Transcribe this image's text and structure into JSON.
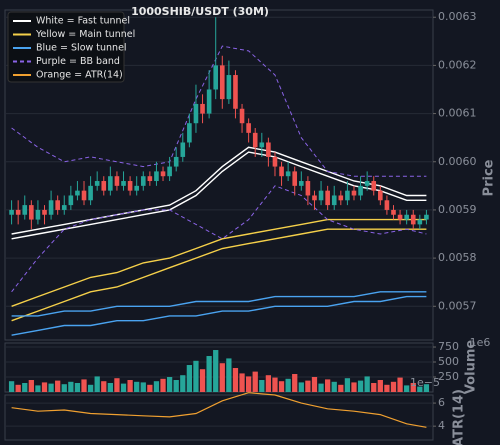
{
  "chart_data": [
    {
      "type": "candlestick",
      "title": "1000SHIB/USDT (30M)",
      "ylabel": "Price",
      "legend": "upper left",
      "grid": true,
      "up_color": "#26a69a",
      "down_color": "#ef5350",
      "ylim": [
        0.00563,
        0.006315
      ],
      "yticks": [
        0.0057,
        0.0058,
        0.0059,
        {
          "value": 0.006,
          "label": "0.0060"
        },
        0.0061,
        0.0062,
        0.0063
      ],
      "candles": [
        [
          0.00589,
          0.00592,
          0.00587,
          0.0059
        ],
        [
          0.0059,
          0.00592,
          0.00587,
          0.00589
        ],
        [
          0.00589,
          0.00593,
          0.00588,
          0.00591
        ],
        [
          0.00591,
          0.00592,
          0.00586,
          0.00588
        ],
        [
          0.00588,
          0.00592,
          0.00587,
          0.0059
        ],
        [
          0.0059,
          0.00591,
          0.00587,
          0.00589
        ],
        [
          0.00589,
          0.00594,
          0.00588,
          0.00592
        ],
        [
          0.00592,
          0.00593,
          0.00589,
          0.0059
        ],
        [
          0.0059,
          0.00593,
          0.00589,
          0.00591
        ],
        [
          0.00591,
          0.00595,
          0.0059,
          0.00593
        ],
        [
          0.00593,
          0.00596,
          0.00592,
          0.00594
        ],
        [
          0.00594,
          0.00596,
          0.00591,
          0.00592
        ],
        [
          0.00592,
          0.00597,
          0.00591,
          0.00595
        ],
        [
          0.00595,
          0.00598,
          0.00594,
          0.00596
        ],
        [
          0.00596,
          0.00597,
          0.00593,
          0.00594
        ],
        [
          0.00594,
          0.00599,
          0.00593,
          0.00597
        ],
        [
          0.00597,
          0.00598,
          0.00594,
          0.00595
        ],
        [
          0.00595,
          0.00598,
          0.00594,
          0.00596
        ],
        [
          0.00596,
          0.00597,
          0.00593,
          0.00594
        ],
        [
          0.00594,
          0.00597,
          0.00593,
          0.00595
        ],
        [
          0.00595,
          0.00598,
          0.00594,
          0.00597
        ],
        [
          0.00597,
          0.00598,
          0.00595,
          0.00596
        ],
        [
          0.00596,
          0.006,
          0.00595,
          0.00598
        ],
        [
          0.00598,
          0.00599,
          0.00596,
          0.00597
        ],
        [
          0.00597,
          0.00601,
          0.00596,
          0.00599
        ],
        [
          0.00599,
          0.00603,
          0.00598,
          0.00601
        ],
        [
          0.00601,
          0.00606,
          0.006,
          0.00604
        ],
        [
          0.00604,
          0.0061,
          0.00603,
          0.00608
        ],
        [
          0.00608,
          0.00616,
          0.00606,
          0.00612
        ],
        [
          0.00612,
          0.00614,
          0.00608,
          0.0061
        ],
        [
          0.0061,
          0.00619,
          0.00609,
          0.00615
        ],
        [
          0.00615,
          0.0063,
          0.00613,
          0.0062
        ],
        [
          0.0062,
          0.00622,
          0.00611,
          0.00613
        ],
        [
          0.00613,
          0.00621,
          0.00612,
          0.00618
        ],
        [
          0.00618,
          0.00619,
          0.00609,
          0.00611
        ],
        [
          0.00611,
          0.00612,
          0.00606,
          0.00608
        ],
        [
          0.00608,
          0.00609,
          0.00604,
          0.00606
        ],
        [
          0.00606,
          0.00607,
          0.00601,
          0.00603
        ],
        [
          0.00603,
          0.00606,
          0.00601,
          0.00604
        ],
        [
          0.00604,
          0.00605,
          0.00599,
          0.00601
        ],
        [
          0.00601,
          0.00602,
          0.00597,
          0.00599
        ],
        [
          0.00599,
          0.006,
          0.00595,
          0.00597
        ],
        [
          0.00597,
          0.006,
          0.00596,
          0.00598
        ],
        [
          0.00598,
          0.00599,
          0.00593,
          0.00595
        ],
        [
          0.00595,
          0.00598,
          0.00594,
          0.00596
        ],
        [
          0.00596,
          0.00597,
          0.00591,
          0.00593
        ],
        [
          0.00593,
          0.00594,
          0.0059,
          0.00592
        ],
        [
          0.00592,
          0.00596,
          0.00591,
          0.00594
        ],
        [
          0.00594,
          0.00595,
          0.0059,
          0.00591
        ],
        [
          0.00591,
          0.00595,
          0.0059,
          0.00593
        ],
        [
          0.00593,
          0.00594,
          0.00591,
          0.00592
        ],
        [
          0.00592,
          0.00596,
          0.00591,
          0.00594
        ],
        [
          0.00594,
          0.00595,
          0.00592,
          0.00593
        ],
        [
          0.00593,
          0.00597,
          0.00592,
          0.00595
        ],
        [
          0.00595,
          0.00598,
          0.00594,
          0.00596
        ],
        [
          0.00596,
          0.00597,
          0.00593,
          0.00594
        ],
        [
          0.00594,
          0.00595,
          0.00591,
          0.00592
        ],
        [
          0.00592,
          0.00593,
          0.00589,
          0.0059
        ],
        [
          0.0059,
          0.00591,
          0.00588,
          0.00589
        ],
        [
          0.00589,
          0.0059,
          0.00587,
          0.00588
        ],
        [
          0.00588,
          0.0059,
          0.00587,
          0.00589
        ],
        [
          0.00589,
          0.0059,
          0.00586,
          0.00587
        ],
        [
          0.00587,
          0.00589,
          0.00586,
          0.00588
        ],
        [
          0.00588,
          0.0059,
          0.00587,
          0.00589
        ]
      ],
      "series": [
        {
          "name": "White = Fast tunnel",
          "color": "#ffffff",
          "dash": false,
          "x": [
            0,
            4,
            8,
            12,
            16,
            20,
            24,
            28,
            32,
            36,
            40,
            44,
            48,
            52,
            56,
            60,
            63
          ],
          "upper": [
            0.00585,
            0.00586,
            0.00587,
            0.00588,
            0.00589,
            0.0059,
            0.00591,
            0.00594,
            0.00599,
            0.00603,
            0.00602,
            0.006,
            0.00598,
            0.00596,
            0.00595,
            0.00593,
            0.00593
          ],
          "lower": [
            0.00584,
            0.00585,
            0.00586,
            0.00587,
            0.00588,
            0.00589,
            0.0059,
            0.00593,
            0.00598,
            0.00602,
            0.00601,
            0.00599,
            0.00597,
            0.00595,
            0.00594,
            0.00592,
            0.00592
          ]
        },
        {
          "name": "Yellow = Main tunnel",
          "color": "#f5d04a",
          "dash": false,
          "x": [
            0,
            4,
            8,
            12,
            16,
            20,
            24,
            28,
            32,
            36,
            40,
            44,
            48,
            52,
            56,
            60,
            63
          ],
          "upper": [
            0.0057,
            0.00572,
            0.00574,
            0.00576,
            0.00577,
            0.00579,
            0.0058,
            0.00582,
            0.00584,
            0.00585,
            0.00586,
            0.00587,
            0.00588,
            0.00588,
            0.00588,
            0.00588,
            0.00588
          ],
          "lower": [
            0.00567,
            0.00569,
            0.00571,
            0.00573,
            0.00574,
            0.00576,
            0.00578,
            0.0058,
            0.00582,
            0.00583,
            0.00584,
            0.00585,
            0.00586,
            0.00586,
            0.00586,
            0.00586,
            0.00586
          ]
        },
        {
          "name": "Blue = Slow tunnel",
          "color": "#4aa3f0",
          "dash": false,
          "x": [
            0,
            4,
            8,
            12,
            16,
            20,
            24,
            28,
            32,
            36,
            40,
            44,
            48,
            52,
            56,
            60,
            63
          ],
          "upper": [
            0.00568,
            0.00568,
            0.00569,
            0.00569,
            0.0057,
            0.0057,
            0.0057,
            0.00571,
            0.00571,
            0.00571,
            0.00572,
            0.00572,
            0.00572,
            0.00572,
            0.00573,
            0.00573,
            0.00573
          ],
          "lower": [
            0.00564,
            0.00565,
            0.00566,
            0.00566,
            0.00567,
            0.00567,
            0.00568,
            0.00568,
            0.00569,
            0.00569,
            0.0057,
            0.0057,
            0.0057,
            0.00571,
            0.00571,
            0.00572,
            0.00572
          ]
        },
        {
          "name": "Purple = BB band",
          "color": "#8a63e6",
          "dash": true,
          "x": [
            0,
            4,
            8,
            12,
            16,
            20,
            24,
            28,
            32,
            36,
            40,
            44,
            48,
            52,
            56,
            60,
            63
          ],
          "upper": [
            0.00607,
            0.00603,
            0.006,
            0.00601,
            0.006,
            0.00599,
            0.006,
            0.00613,
            0.00624,
            0.00623,
            0.00618,
            0.00605,
            0.00598,
            0.00597,
            0.00597,
            0.00597,
            0.00597
          ],
          "lower": [
            0.00573,
            0.0058,
            0.00586,
            0.00588,
            0.00589,
            0.0059,
            0.0059,
            0.00587,
            0.00584,
            0.00588,
            0.00595,
            0.00593,
            0.00588,
            0.00586,
            0.00585,
            0.00586,
            0.00585
          ]
        }
      ]
    },
    {
      "type": "bar",
      "ylabel": "Volume",
      "offset_label": "1e6",
      "ylim": [
        0,
        817
      ],
      "yticks": [
        250,
        500,
        750
      ],
      "grid": true,
      "values": [
        180,
        120,
        150,
        200,
        110,
        160,
        140,
        190,
        130,
        170,
        150,
        210,
        120,
        260,
        180,
        150,
        230,
        140,
        200,
        170,
        160,
        120,
        180,
        220,
        250,
        200,
        280,
        450,
        520,
        380,
        600,
        700,
        480,
        560,
        400,
        310,
        260,
        340,
        200,
        280,
        240,
        180,
        220,
        300,
        160,
        190,
        250,
        140,
        210,
        170,
        120,
        230,
        160,
        190,
        260,
        150,
        200,
        120,
        170,
        240,
        110,
        150,
        90,
        130
      ]
    },
    {
      "type": "line",
      "ylabel": "ATR(14)",
      "offset_label": "1e−5",
      "ylim": [
        2.8,
        6.7
      ],
      "yticks": [
        4,
        6
      ],
      "grid": true,
      "series": [
        {
          "name": "Orange = ATR(14)",
          "color": "#f0a030",
          "x": [
            0,
            4,
            8,
            12,
            16,
            20,
            24,
            28,
            32,
            36,
            40,
            44,
            48,
            52,
            56,
            60,
            63
          ],
          "values": [
            5.6,
            5.3,
            5.4,
            5.1,
            5.0,
            4.9,
            4.8,
            5.1,
            6.2,
            6.9,
            6.7,
            6.0,
            5.5,
            5.3,
            5.0,
            4.2,
            3.9
          ]
        }
      ]
    }
  ]
}
